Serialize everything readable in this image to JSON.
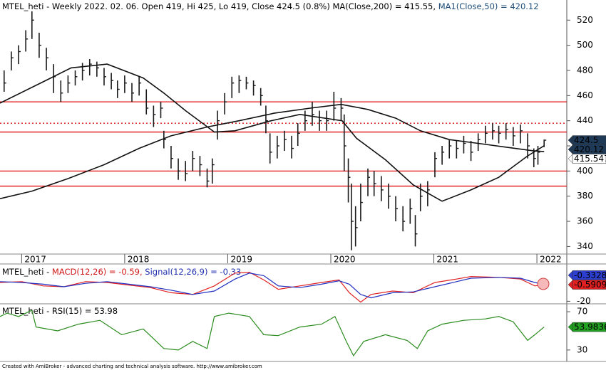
{
  "chart_data": [
    {
      "type": "hlc",
      "title": [
        {
          "text": "MTEL_heti - Weekly 2022. 02. 06. Open 419, Hi 425, Lo 419, Close 424.5 (0.8%) ",
          "color": "#000000"
        },
        {
          "text": "MA(Close,200) = 415.55, ",
          "color": "#000000"
        },
        {
          "text": "MA1(Close,50) = 420.12",
          "color": "#1f4e79"
        }
      ],
      "xlim": [
        2016.79,
        2022.29
      ],
      "ylim": [
        334,
        536
      ],
      "xticks": [
        2017,
        2018,
        2019,
        2020,
        2021,
        2022
      ],
      "yticks": [
        340,
        360,
        380,
        400,
        420,
        440,
        460,
        480,
        500,
        520
      ],
      "color": "#1a1a1a",
      "x": [
        2016.83,
        2016.9,
        2016.97,
        2017.04,
        2017.1,
        2017.17,
        2017.24,
        2017.31,
        2017.38,
        2017.45,
        2017.52,
        2017.59,
        2017.66,
        2017.73,
        2017.8,
        2017.87,
        2017.93,
        2018.0,
        2018.07,
        2018.14,
        2018.21,
        2018.28,
        2018.35,
        2018.38,
        2018.45,
        2018.52,
        2018.59,
        2018.66,
        2018.73,
        2018.8,
        2018.85,
        2018.9,
        2018.97,
        2019.04,
        2019.11,
        2019.18,
        2019.25,
        2019.32,
        2019.37,
        2019.41,
        2019.48,
        2019.55,
        2019.62,
        2019.68,
        2019.75,
        2019.82,
        2019.89,
        2019.96,
        2020.03,
        2020.1,
        2020.13,
        2020.17,
        2020.2,
        2020.24,
        2020.29,
        2020.36,
        2020.42,
        2020.49,
        2020.56,
        2020.63,
        2020.7,
        2020.77,
        2020.82,
        2020.87,
        2020.94,
        2021.01,
        2021.08,
        2021.15,
        2021.22,
        2021.29,
        2021.36,
        2021.43,
        2021.5,
        2021.57,
        2021.63,
        2021.7,
        2021.77,
        2021.84,
        2021.91,
        2021.97,
        2022.01,
        2022.07
      ],
      "high": [
        480,
        495,
        500,
        512,
        527,
        510,
        498,
        485,
        472,
        476,
        480,
        486,
        489,
        487,
        482,
        478,
        472,
        476,
        470,
        475,
        465,
        452,
        455,
        432,
        420,
        410,
        408,
        416,
        412,
        402,
        410,
        448,
        462,
        475,
        476,
        475,
        472,
        466,
        452,
        430,
        428,
        432,
        428,
        438,
        448,
        455,
        448,
        448,
        463,
        458,
        445,
        410,
        390,
        372,
        390,
        402,
        400,
        396,
        390,
        380,
        372,
        378,
        365,
        390,
        392,
        415,
        420,
        425,
        424,
        428,
        424,
        430,
        436,
        438,
        436,
        438,
        435,
        437,
        430,
        418,
        420,
        425
      ],
      "low": [
        463,
        480,
        485,
        495,
        505,
        490,
        480,
        462,
        455,
        462,
        468,
        472,
        476,
        475,
        468,
        465,
        458,
        462,
        455,
        460,
        445,
        435,
        442,
        418,
        402,
        393,
        392,
        400,
        396,
        387,
        390,
        425,
        445,
        458,
        462,
        465,
        460,
        452,
        430,
        406,
        410,
        416,
        410,
        420,
        432,
        436,
        432,
        432,
        440,
        440,
        400,
        375,
        337,
        340,
        360,
        380,
        380,
        376,
        370,
        360,
        352,
        358,
        340,
        368,
        372,
        395,
        405,
        410,
        410,
        414,
        408,
        416,
        422,
        425,
        422,
        425,
        420,
        422,
        410,
        403,
        405,
        419
      ],
      "close": [
        470,
        490,
        495,
        505,
        520,
        500,
        490,
        475,
        462,
        470,
        475,
        480,
        485,
        482,
        475,
        472,
        465,
        470,
        462,
        470,
        450,
        445,
        450,
        425,
        410,
        400,
        398,
        410,
        405,
        392,
        405,
        440,
        455,
        470,
        472,
        470,
        468,
        460,
        440,
        415,
        420,
        425,
        418,
        430,
        440,
        445,
        440,
        440,
        450,
        450,
        420,
        395,
        360,
        355,
        375,
        395,
        390,
        385,
        380,
        370,
        360,
        370,
        350,
        380,
        385,
        410,
        415,
        420,
        418,
        422,
        415,
        425,
        430,
        432,
        430,
        433,
        428,
        432,
        420,
        410,
        415,
        424.5
      ],
      "series": [
        {
          "name": "MA(Close,200)",
          "color": "#111111",
          "x": [
            2016.79,
            2017.1,
            2017.45,
            2017.8,
            2018.14,
            2018.45,
            2018.8,
            2019.11,
            2019.45,
            2019.8,
            2020.1,
            2020.36,
            2020.63,
            2020.87,
            2021.15,
            2021.43,
            2021.7,
            2021.97,
            2022.07
          ],
          "values": [
            378,
            384,
            394,
            405,
            418,
            428,
            435,
            440,
            446,
            450,
            453,
            449,
            442,
            432,
            425,
            422,
            419,
            416,
            415.55
          ]
        },
        {
          "name": "MA1(Close,50)",
          "color": "#111111",
          "x": [
            2016.79,
            2017.21,
            2017.48,
            2017.83,
            2018.18,
            2018.38,
            2018.59,
            2018.87,
            2019.07,
            2019.42,
            2019.7,
            2020.11,
            2020.25,
            2020.53,
            2020.8,
            2021.08,
            2021.36,
            2021.63,
            2021.91,
            2022.07
          ],
          "values": [
            454,
            471,
            482,
            485,
            474,
            462,
            448,
            431,
            432,
            440,
            445,
            440,
            426,
            409,
            389,
            376,
            385,
            395,
            412,
            420.12
          ]
        }
      ],
      "levels": [
        {
          "value": 455,
          "style": "solid",
          "color": "#e01010"
        },
        {
          "value": 438,
          "style": "dotted",
          "color": "#e01010"
        },
        {
          "value": 431,
          "style": "solid",
          "color": "#e01010"
        },
        {
          "value": 400,
          "style": "solid",
          "color": "#e01010"
        },
        {
          "value": 388,
          "style": "solid",
          "color": "#e01010"
        }
      ],
      "badges": [
        {
          "value": 424.5,
          "label": "424.5",
          "color": "#1e3a56",
          "text_color": "#ffffff"
        },
        {
          "value": 420.12,
          "label": "420.12",
          "color": "#1e3a56",
          "text_color": "#ffffff"
        },
        {
          "value": 415.547,
          "label": "415.547",
          "color": "#ffffff",
          "text_color": "#000000"
        }
      ]
    },
    {
      "type": "line",
      "title": [
        {
          "text": "MTEL_heti - ",
          "color": "#000000"
        },
        {
          "text": "MACD(12,26) = -0.59, ",
          "color": "#d01818"
        },
        {
          "text": "Signal(12,26,9) = -0.33",
          "color": "#2030b0"
        }
      ],
      "xlim": [
        2016.79,
        2022.29
      ],
      "ylim": [
        -23,
        22
      ],
      "yticks": [
        -20
      ],
      "series": [
        {
          "name": "MACD(12,26)",
          "color": "#e02020",
          "x": [
            2016.79,
            2017.0,
            2017.21,
            2017.41,
            2017.62,
            2017.83,
            2018.04,
            2018.25,
            2018.45,
            2018.66,
            2018.87,
            2019.07,
            2019.21,
            2019.35,
            2019.49,
            2019.7,
            2019.91,
            2020.08,
            2020.18,
            2020.29,
            2020.39,
            2020.6,
            2020.8,
            2021.01,
            2021.22,
            2021.36,
            2021.63,
            2021.84,
            2021.98,
            2022.07
          ],
          "values": [
            2,
            3,
            -2,
            -3,
            3,
            2,
            -1,
            -4,
            -10,
            -12,
            -2,
            13,
            14,
            5,
            -6,
            -2,
            2,
            5,
            -10,
            -21,
            -12,
            -8,
            -10,
            2,
            6,
            9,
            8,
            6,
            -2,
            -0.59
          ]
        },
        {
          "name": "Signal(12,26,9)",
          "color": "#2030c0",
          "x": [
            2016.79,
            2017.0,
            2017.21,
            2017.41,
            2017.62,
            2017.83,
            2018.04,
            2018.25,
            2018.45,
            2018.66,
            2018.87,
            2019.07,
            2019.21,
            2019.35,
            2019.49,
            2019.7,
            2019.91,
            2020.08,
            2020.18,
            2020.29,
            2020.39,
            2020.6,
            2020.8,
            2021.01,
            2021.22,
            2021.36,
            2021.63,
            2021.84,
            2021.98,
            2022.07
          ],
          "values": [
            3,
            2,
            0,
            -3,
            1,
            3,
            0,
            -3,
            -7,
            -12,
            -8,
            6,
            13,
            10,
            -2,
            -4,
            0,
            4,
            0,
            -12,
            -16,
            -10,
            -9,
            -3,
            3,
            7,
            8,
            7,
            2,
            -0.33
          ]
        }
      ],
      "badges": [
        {
          "value": -0.33285,
          "label": "-0.33285",
          "color": "#2c3fd0",
          "text_color": "#ffffff"
        },
        {
          "value": -0.5909,
          "label": "-0.59090",
          "color": "#e02020",
          "text_color": "#ffffff"
        }
      ]
    },
    {
      "type": "line",
      "title": [
        {
          "text": "MTEL_heti - ",
          "color": "#000000"
        },
        {
          "text": "RSI(15) = 53.98",
          "color": "#000000"
        }
      ],
      "xlim": [
        2016.79,
        2022.29
      ],
      "ylim": [
        18,
        77.5
      ],
      "yticks": [
        30,
        70
      ],
      "series": [
        {
          "name": "RSI(15)",
          "color": "#2b8c1e",
          "x": [
            2016.79,
            2016.86,
            2016.97,
            2017.1,
            2017.14,
            2017.35,
            2017.55,
            2017.76,
            2017.97,
            2018.18,
            2018.38,
            2018.52,
            2018.66,
            2018.8,
            2018.87,
            2019.01,
            2019.21,
            2019.35,
            2019.49,
            2019.7,
            2019.91,
            2020.04,
            2020.15,
            2020.22,
            2020.32,
            2020.53,
            2020.74,
            2020.84,
            2020.94,
            2021.08,
            2021.29,
            2021.5,
            2021.63,
            2021.77,
            2021.91,
            2021.98,
            2022.07
          ],
          "values": [
            65,
            68.5,
            65,
            71.5,
            54,
            50,
            57,
            61,
            46,
            52,
            31.5,
            30,
            39,
            31.5,
            65,
            68.5,
            65,
            46,
            45,
            54,
            57,
            65,
            39,
            24,
            39,
            46,
            40,
            31.5,
            50,
            57,
            61,
            62.5,
            65,
            59.5,
            40,
            46,
            53.98
          ]
        }
      ],
      "badges": [
        {
          "value": 53.9836,
          "label": "53.9836",
          "color": "#22a022",
          "text_color": "#ffffff"
        }
      ]
    }
  ],
  "footer": "Created with AmiBroker - advanced charting and technical analysis software. http://www.amibroker.com"
}
